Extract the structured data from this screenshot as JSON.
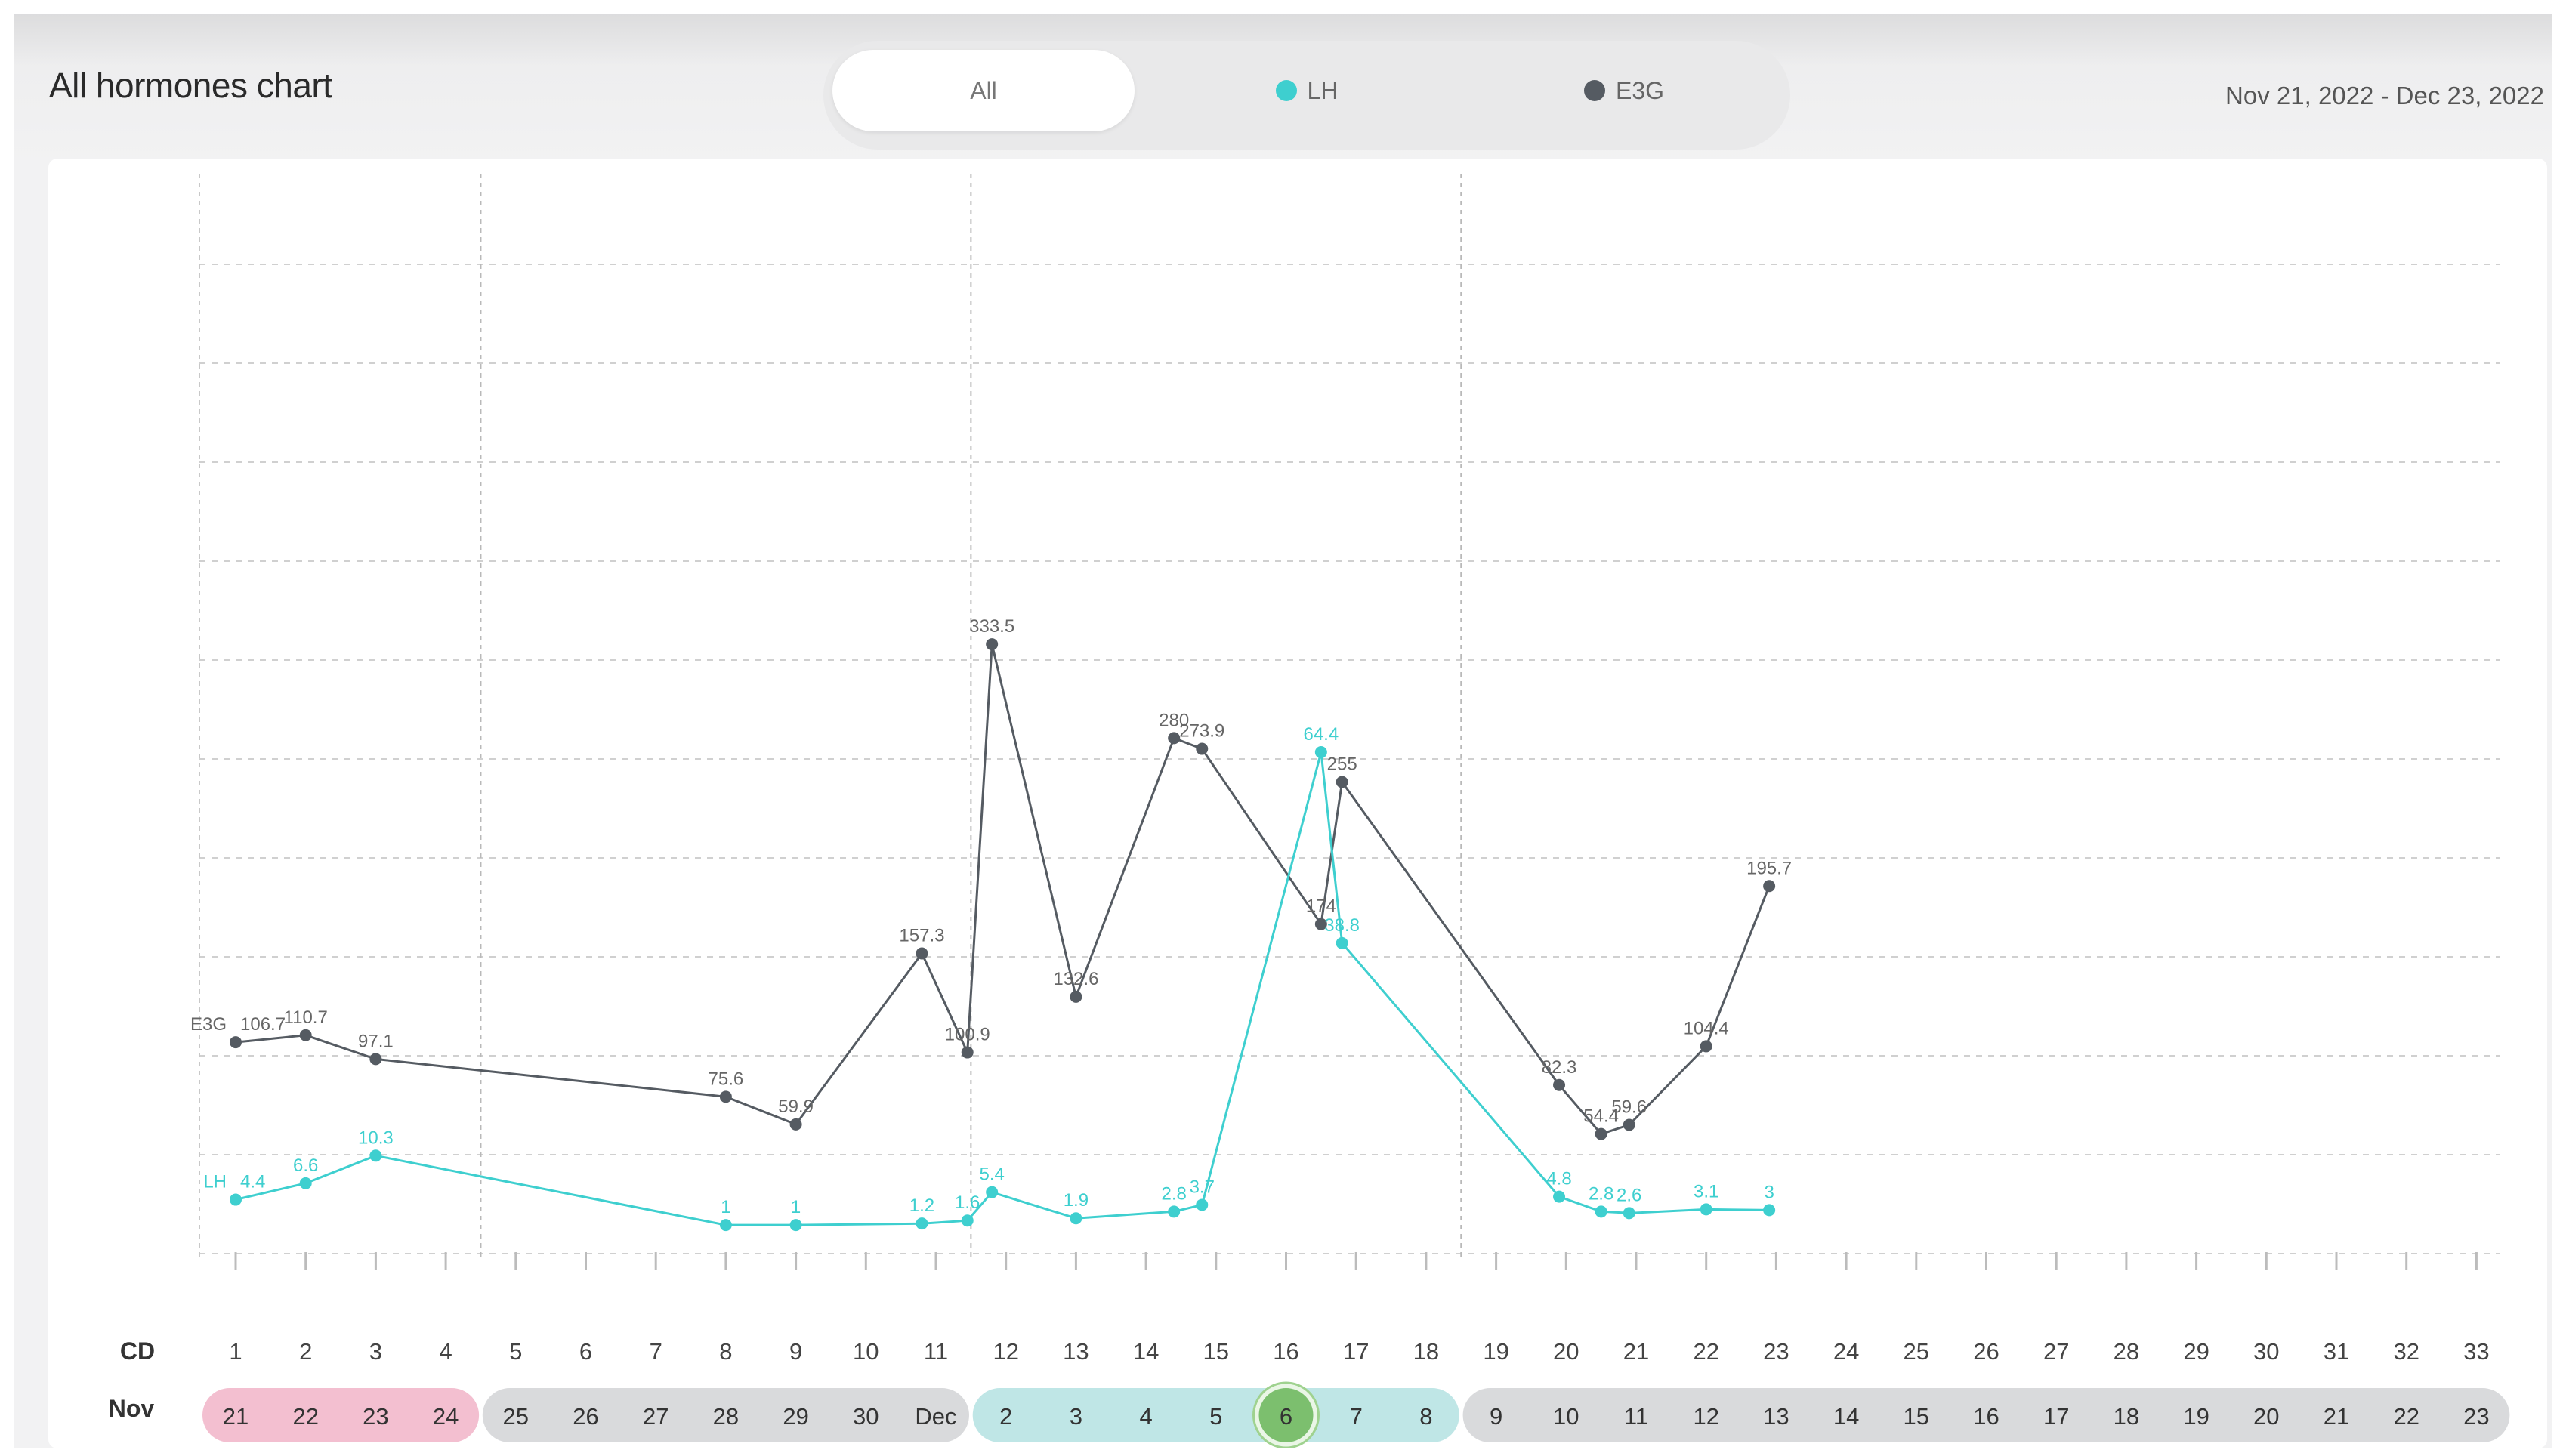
{
  "header": {
    "title": "All hormones chart",
    "date_range": "Nov 21, 2022 - Dec 23, 2022"
  },
  "filter_tabs": [
    {
      "label": "All",
      "active": true
    },
    {
      "label": "LH",
      "dot_color": "#3ecfcf"
    },
    {
      "label": "E3G",
      "dot_color": "#555b62"
    }
  ],
  "row_labels": {
    "cd": "CD",
    "month": "Nov"
  },
  "chart_data": {
    "type": "line",
    "x_label_cd": "CD",
    "cycle_days": [
      1,
      2,
      3,
      4,
      5,
      6,
      7,
      8,
      9,
      10,
      11,
      12,
      13,
      14,
      15,
      16,
      17,
      18,
      19,
      20,
      21,
      22,
      23,
      24,
      25,
      26,
      27,
      28,
      29,
      30,
      31,
      32,
      33
    ],
    "dates": [
      "21",
      "22",
      "23",
      "24",
      "25",
      "26",
      "27",
      "28",
      "29",
      "30",
      "Dec",
      "2",
      "3",
      "4",
      "5",
      "6",
      "7",
      "8",
      "9",
      "10",
      "11",
      "12",
      "13",
      "14",
      "15",
      "16",
      "17",
      "18",
      "19",
      "20",
      "21",
      "22",
      "23"
    ],
    "date_phases": [
      "menstrual",
      "menstrual",
      "menstrual",
      "menstrual",
      "low",
      "low",
      "low",
      "low",
      "low",
      "low",
      "low",
      "high",
      "high",
      "high",
      "high",
      "peak",
      "high",
      "high",
      "low",
      "low",
      "low",
      "low",
      "low",
      "low",
      "low",
      "low",
      "low",
      "low",
      "low",
      "low",
      "low",
      "low",
      "low"
    ],
    "today_index": 15,
    "ylim": [
      0,
      550
    ],
    "grid": true,
    "phase_colors": {
      "menstrual": "#f3bfd0",
      "low": "#d9dadc",
      "high": "#bfe6e6",
      "peak": "#7cbf6e"
    },
    "series": [
      {
        "name": "E3G",
        "color": "#555b62",
        "start_label": "E3G",
        "points": [
          {
            "x": 1,
            "y": 106.7,
            "label": "106.7"
          },
          {
            "x": 2,
            "y": 110.7,
            "label": "110.7"
          },
          {
            "x": 3,
            "y": 97.1,
            "label": "97.1"
          },
          {
            "x": 8,
            "y": 75.6,
            "label": "75.6"
          },
          {
            "x": 9,
            "y": 59.9,
            "label": "59.9"
          },
          {
            "x": 10.8,
            "y": 157.3,
            "label": "157.3"
          },
          {
            "x": 11.45,
            "y": 100.9,
            "label": "100.9"
          },
          {
            "x": 11.8,
            "y": 333.5,
            "label": "333.5"
          },
          {
            "x": 13,
            "y": 132.6,
            "label": "132.6"
          },
          {
            "x": 14.4,
            "y": 280,
            "label": "280"
          },
          {
            "x": 14.8,
            "y": 273.9,
            "label": "273.9"
          },
          {
            "x": 16.5,
            "y": 174,
            "label": "174"
          },
          {
            "x": 16.8,
            "y": 255,
            "label": "255"
          },
          {
            "x": 19.9,
            "y": 82.3,
            "label": "82.3"
          },
          {
            "x": 20.5,
            "y": 54.4,
            "label": "54.4"
          },
          {
            "x": 20.9,
            "y": 59.6,
            "label": "59.6"
          },
          {
            "x": 22,
            "y": 104.4,
            "label": "104.4"
          },
          {
            "x": 22.9,
            "y": 195.7,
            "label": "195.7"
          }
        ]
      },
      {
        "name": "LH",
        "color": "#3ecfcf",
        "start_label": "LH",
        "points": [
          {
            "x": 1,
            "y": 4.4,
            "label": "4.4"
          },
          {
            "x": 2,
            "y": 6.6,
            "label": "6.6"
          },
          {
            "x": 3,
            "y": 10.3,
            "label": "10.3"
          },
          {
            "x": 8,
            "y": 1,
            "label": "1"
          },
          {
            "x": 9,
            "y": 1,
            "label": "1"
          },
          {
            "x": 10.8,
            "y": 1.2,
            "label": "1.2"
          },
          {
            "x": 11.45,
            "y": 1.6,
            "label": "1.6"
          },
          {
            "x": 11.8,
            "y": 5.4,
            "label": "5.4"
          },
          {
            "x": 13,
            "y": 1.9,
            "label": "1.9"
          },
          {
            "x": 14.4,
            "y": 2.8,
            "label": "2.8"
          },
          {
            "x": 14.8,
            "y": 3.7,
            "label": "3.7"
          },
          {
            "x": 16.5,
            "y": 64.4,
            "label": "64.4"
          },
          {
            "x": 16.8,
            "y": 38.8,
            "label": "38.8"
          },
          {
            "x": 19.9,
            "y": 4.8,
            "label": "4.8"
          },
          {
            "x": 20.5,
            "y": 2.8,
            "label": "2.8"
          },
          {
            "x": 20.9,
            "y": 2.6,
            "label": "2.6"
          },
          {
            "x": 22,
            "y": 3.1,
            "label": "3.1"
          },
          {
            "x": 22.9,
            "y": 3,
            "label": "3"
          }
        ]
      }
    ]
  }
}
